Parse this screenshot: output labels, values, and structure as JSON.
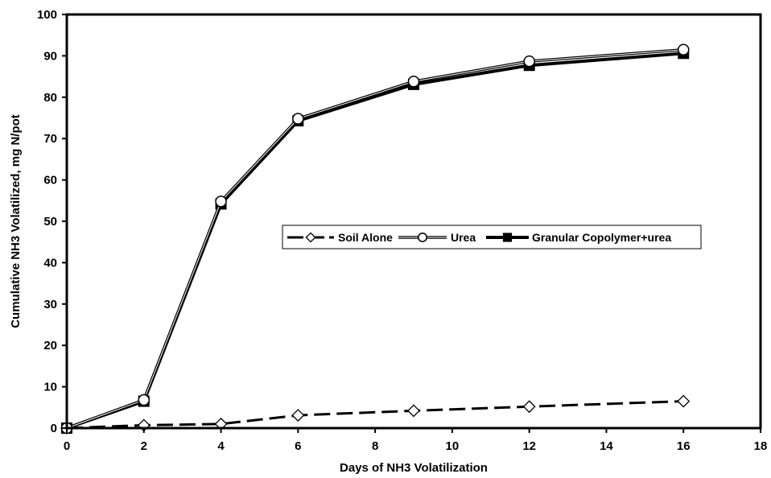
{
  "chart_data": {
    "type": "line",
    "title": "",
    "xlabel": "Days of NH3 Volatilization",
    "ylabel": "Cumulative NH3 Volatilized, mg N/pot",
    "xlim": [
      0,
      18
    ],
    "ylim": [
      0,
      100
    ],
    "x_ticks": [
      0,
      2,
      4,
      6,
      8,
      10,
      12,
      14,
      16,
      18
    ],
    "y_ticks": [
      0,
      10,
      20,
      30,
      40,
      50,
      60,
      70,
      80,
      90,
      100
    ],
    "grid": false,
    "legend_position": "center-right, inside plot",
    "series": [
      {
        "name": "Soil Alone",
        "marker": "open-diamond",
        "line_style": "dashed",
        "x": [
          0,
          2,
          4,
          6,
          9,
          12,
          16
        ],
        "y": [
          0,
          0.7,
          1.0,
          3.1,
          4.2,
          5.2,
          6.5
        ]
      },
      {
        "name": "Urea",
        "marker": "open-circle",
        "line_style": "solid-double",
        "x": [
          0,
          2,
          4,
          6,
          9,
          12,
          16
        ],
        "y": [
          0,
          6.8,
          54.8,
          74.8,
          83.8,
          88.7,
          91.5
        ]
      },
      {
        "name": "Granular Copolymer+urea",
        "marker": "filled-square",
        "line_style": "solid",
        "x": [
          0,
          2,
          4,
          6,
          9,
          12,
          16
        ],
        "y": [
          0,
          6.5,
          54.2,
          74.3,
          83.1,
          87.7,
          90.6
        ]
      }
    ]
  }
}
